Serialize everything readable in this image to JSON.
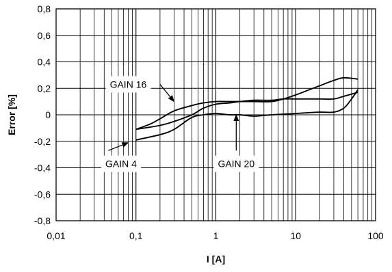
{
  "chart_data": {
    "type": "line",
    "title": "",
    "xlabel": "I [A]",
    "ylabel": "Error [%]",
    "xscale": "log",
    "xlim": [
      0.01,
      100
    ],
    "ylim": [
      -0.8,
      0.8
    ],
    "grid": true,
    "legend": "none",
    "x_tick_labels": [
      "0,01",
      "0,1",
      "1",
      "10",
      "100"
    ],
    "y_tick_labels": [
      "-0,8",
      "-0,6",
      "-0,4",
      "-0,2",
      "0",
      "0,2",
      "0,4",
      "0,6",
      "0,8"
    ],
    "line_color": "#000000",
    "series": [
      {
        "x": [
          0.1,
          0.15,
          0.2,
          0.3,
          0.5,
          0.7,
          1,
          1.5,
          2,
          3,
          5,
          7,
          10,
          20,
          30,
          40,
          60
        ],
        "y": [
          -0.11,
          -0.07,
          -0.03,
          0.03,
          0.07,
          0.09,
          0.1,
          0.1,
          0.1,
          0.1,
          0.1,
          0.12,
          0.15,
          0.22,
          0.26,
          0.28,
          0.27
        ]
      },
      {
        "x": [
          0.1,
          0.2,
          0.3,
          0.5,
          0.7,
          1,
          1.5,
          2,
          3,
          5,
          10,
          20,
          30,
          40,
          50,
          60
        ],
        "y": [
          -0.19,
          -0.15,
          -0.11,
          -0.02,
          0.0,
          0.01,
          0.0,
          0.0,
          -0.01,
          0.0,
          0.01,
          0.02,
          0.02,
          0.05,
          0.12,
          0.19
        ]
      },
      {
        "x": [
          0.1,
          0.2,
          0.3,
          0.5,
          0.7,
          1,
          1.5,
          2,
          3,
          5,
          7,
          10,
          20,
          30,
          40,
          60
        ],
        "y": [
          -0.11,
          -0.08,
          -0.05,
          0.0,
          0.05,
          0.08,
          0.09,
          0.1,
          0.11,
          0.11,
          0.12,
          0.12,
          0.12,
          0.12,
          0.14,
          0.17
        ]
      }
    ],
    "annotations": [
      {
        "text": "GAIN 16",
        "label_x": 0.08,
        "label_y": 0.23,
        "arrow_from": [
          0.2,
          0.23
        ],
        "arrow_to": [
          0.3,
          0.1
        ]
      },
      {
        "text": "GAIN 4",
        "label_x": 0.065,
        "label_y": -0.37,
        "arrow_from": [
          0.045,
          -0.27
        ],
        "arrow_to": [
          0.08,
          -0.21
        ]
      },
      {
        "text": "GAIN 20",
        "label_x": 1.8,
        "label_y": -0.37,
        "arrow_from": [
          1.8,
          -0.27
        ],
        "arrow_to": [
          1.8,
          0.0
        ]
      }
    ]
  }
}
